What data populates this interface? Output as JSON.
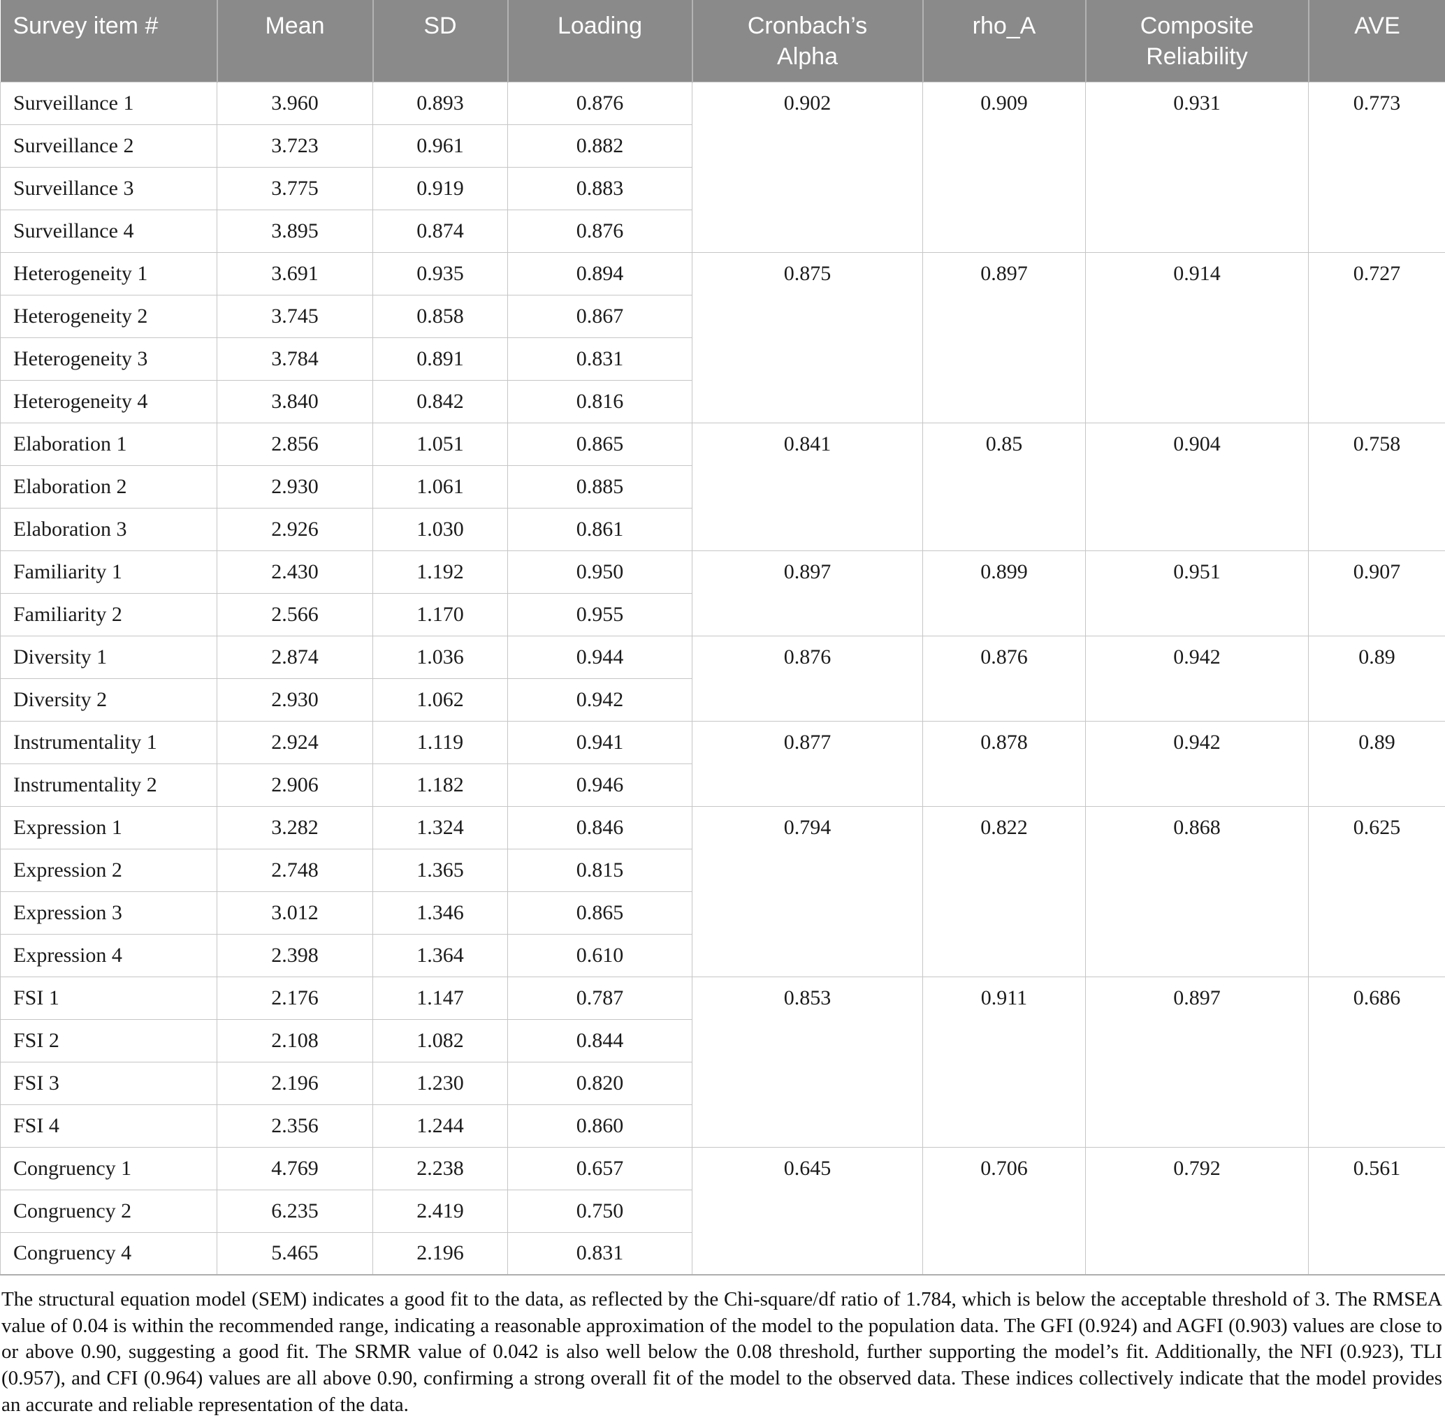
{
  "table": {
    "columns": [
      {
        "key": "item",
        "label": "Survey item #"
      },
      {
        "key": "mean",
        "label": "Mean"
      },
      {
        "key": "sd",
        "label": "SD"
      },
      {
        "key": "loading",
        "label": "Loading"
      },
      {
        "key": "alpha",
        "label": "Cronbach’s Alpha"
      },
      {
        "key": "rho_a",
        "label": "rho_A"
      },
      {
        "key": "cr",
        "label": "Composite Reliability"
      },
      {
        "key": "ave",
        "label": "AVE"
      }
    ],
    "groups": [
      {
        "construct": "Surveillance",
        "cronbachs_alpha": "0.902",
        "rho_a": "0.909",
        "composite_reliability": "0.931",
        "ave": "0.773",
        "items": [
          {
            "item": "Surveillance 1",
            "mean": "3.960",
            "sd": "0.893",
            "loading": "0.876"
          },
          {
            "item": "Surveillance 2",
            "mean": "3.723",
            "sd": "0.961",
            "loading": "0.882"
          },
          {
            "item": "Surveillance 3",
            "mean": "3.775",
            "sd": "0.919",
            "loading": "0.883"
          },
          {
            "item": "Surveillance 4",
            "mean": "3.895",
            "sd": "0.874",
            "loading": "0.876"
          }
        ]
      },
      {
        "construct": "Heterogeneity",
        "cronbachs_alpha": "0.875",
        "rho_a": "0.897",
        "composite_reliability": "0.914",
        "ave": "0.727",
        "items": [
          {
            "item": "Heterogeneity 1",
            "mean": "3.691",
            "sd": "0.935",
            "loading": "0.894"
          },
          {
            "item": "Heterogeneity 2",
            "mean": "3.745",
            "sd": "0.858",
            "loading": "0.867"
          },
          {
            "item": "Heterogeneity 3",
            "mean": "3.784",
            "sd": "0.891",
            "loading": "0.831"
          },
          {
            "item": "Heterogeneity 4",
            "mean": "3.840",
            "sd": "0.842",
            "loading": "0.816"
          }
        ]
      },
      {
        "construct": "Elaboration",
        "cronbachs_alpha": "0.841",
        "rho_a": "0.85",
        "composite_reliability": "0.904",
        "ave": "0.758",
        "items": [
          {
            "item": "Elaboration 1",
            "mean": "2.856",
            "sd": "1.051",
            "loading": "0.865"
          },
          {
            "item": "Elaboration 2",
            "mean": "2.930",
            "sd": "1.061",
            "loading": "0.885"
          },
          {
            "item": "Elaboration 3",
            "mean": "2.926",
            "sd": "1.030",
            "loading": "0.861"
          }
        ]
      },
      {
        "construct": "Familiarity",
        "cronbachs_alpha": "0.897",
        "rho_a": "0.899",
        "composite_reliability": "0.951",
        "ave": "0.907",
        "items": [
          {
            "item": "Familiarity 1",
            "mean": "2.430",
            "sd": "1.192",
            "loading": "0.950"
          },
          {
            "item": "Familiarity 2",
            "mean": "2.566",
            "sd": "1.170",
            "loading": "0.955"
          }
        ]
      },
      {
        "construct": "Diversity",
        "cronbachs_alpha": "0.876",
        "rho_a": "0.876",
        "composite_reliability": "0.942",
        "ave": "0.89",
        "items": [
          {
            "item": "Diversity 1",
            "mean": "2.874",
            "sd": "1.036",
            "loading": "0.944"
          },
          {
            "item": "Diversity 2",
            "mean": "2.930",
            "sd": "1.062",
            "loading": "0.942"
          }
        ]
      },
      {
        "construct": "Instrumentality",
        "cronbachs_alpha": "0.877",
        "rho_a": "0.878",
        "composite_reliability": "0.942",
        "ave": "0.89",
        "items": [
          {
            "item": "Instrumentality 1",
            "mean": "2.924",
            "sd": "1.119",
            "loading": "0.941"
          },
          {
            "item": "Instrumentality 2",
            "mean": "2.906",
            "sd": "1.182",
            "loading": "0.946"
          }
        ]
      },
      {
        "construct": "Expression",
        "cronbachs_alpha": "0.794",
        "rho_a": "0.822",
        "composite_reliability": "0.868",
        "ave": "0.625",
        "items": [
          {
            "item": "Expression 1",
            "mean": "3.282",
            "sd": "1.324",
            "loading": "0.846"
          },
          {
            "item": "Expression 2",
            "mean": "2.748",
            "sd": "1.365",
            "loading": "0.815"
          },
          {
            "item": "Expression 3",
            "mean": "3.012",
            "sd": "1.346",
            "loading": "0.865"
          },
          {
            "item": "Expression 4",
            "mean": "2.398",
            "sd": "1.364",
            "loading": "0.610"
          }
        ]
      },
      {
        "construct": "FSI",
        "cronbachs_alpha": "0.853",
        "rho_a": "0.911",
        "composite_reliability": "0.897",
        "ave": "0.686",
        "items": [
          {
            "item": "FSI 1",
            "mean": "2.176",
            "sd": "1.147",
            "loading": "0.787"
          },
          {
            "item": "FSI 2",
            "mean": "2.108",
            "sd": "1.082",
            "loading": "0.844"
          },
          {
            "item": "FSI 3",
            "mean": "2.196",
            "sd": "1.230",
            "loading": "0.820"
          },
          {
            "item": "FSI 4",
            "mean": "2.356",
            "sd": "1.244",
            "loading": "0.860"
          }
        ]
      },
      {
        "construct": "Congruency",
        "cronbachs_alpha": "0.645",
        "rho_a": "0.706",
        "composite_reliability": "0.792",
        "ave": "0.561",
        "items": [
          {
            "item": "Congruency 1",
            "mean": "4.769",
            "sd": "2.238",
            "loading": "0.657"
          },
          {
            "item": "Congruency 2",
            "mean": "6.235",
            "sd": "2.419",
            "loading": "0.750"
          },
          {
            "item": "Congruency 4",
            "mean": "5.465",
            "sd": "2.196",
            "loading": "0.831"
          }
        ]
      }
    ]
  },
  "footnote": "The structural equation model (SEM) indicates a good fit to the data, as reflected by the Chi-square/df ratio of 1.784, which is below the acceptable threshold of 3. The RMSEA value of 0.04 is within the recommended range, indicating a reasonable approximation of the model to the population data. The GFI (0.924) and AGFI (0.903) values are close to or above 0.90, suggesting a good fit. The SRMR value of 0.042 is also well below the 0.08 threshold, further supporting the model’s fit. Additionally, the NFI (0.923), TLI (0.957), and CFI (0.964) values are all above 0.90, confirming a strong overall fit of the model to the observed data. These indices collectively indicate that the model provides an accurate and reliable representation of the data."
}
